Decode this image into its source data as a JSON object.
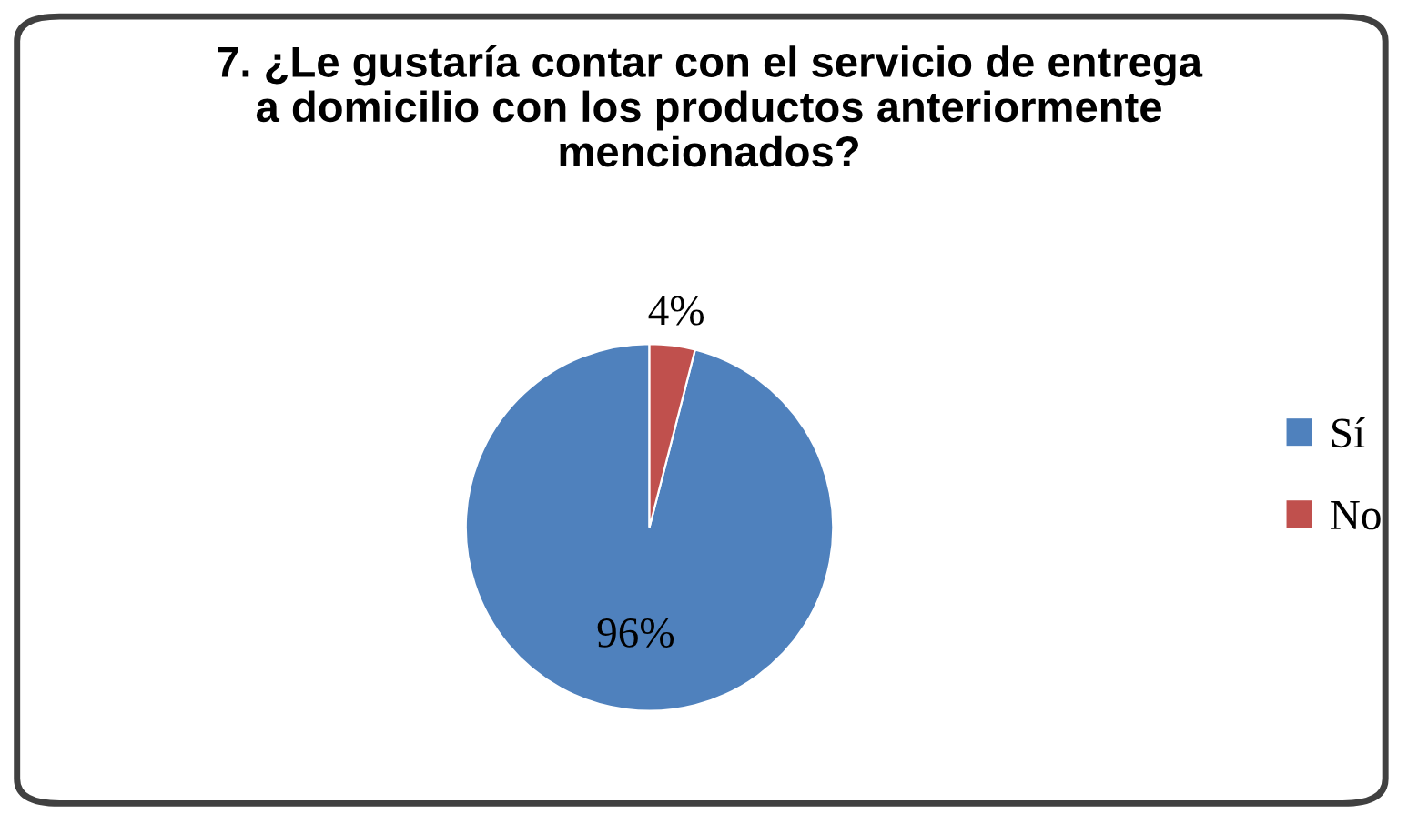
{
  "chart_data": {
    "type": "pie",
    "title": "7. ¿Le gustaría contar con el servicio de entrega\na domicilio con los productos anteriormente\nmencionados?",
    "categories": [
      "Sí",
      "No"
    ],
    "values": [
      96,
      4
    ],
    "colors": [
      "#4f81bd",
      "#c0504d"
    ],
    "value_labels": [
      "96%",
      "4%"
    ],
    "legend": "right"
  }
}
